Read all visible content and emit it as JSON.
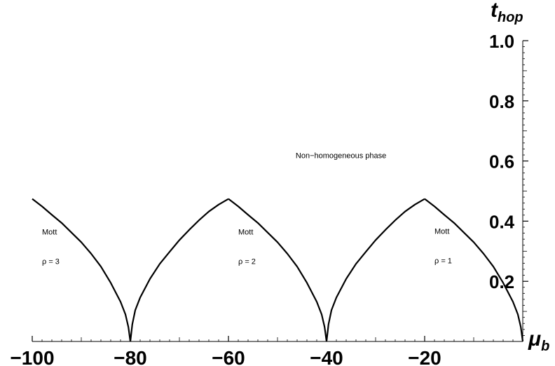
{
  "chart_data": {
    "type": "line",
    "xlabel_main": "μ",
    "xlabel_sub": "b",
    "ylabel_main": "t",
    "ylabel_sub": "hop",
    "xlim": [
      -100,
      0
    ],
    "ylim": [
      0,
      1.0
    ],
    "x_ticks": [
      -100,
      -80,
      -60,
      -40,
      -20
    ],
    "x_tick_labels": [
      "−100",
      "−80",
      "−60",
      "−40",
      "−20"
    ],
    "y_ticks": [
      0.2,
      0.4,
      0.6,
      0.8,
      1.0
    ],
    "y_tick_labels": [
      "0.2",
      "0.4",
      "0.6",
      "0.8",
      "1.0"
    ],
    "line_color": "#000000",
    "series": [
      {
        "points": [
          [
            -100,
            0.474
          ],
          [
            -98,
            0.449
          ],
          [
            -96,
            0.421
          ],
          [
            -94,
            0.394
          ],
          [
            -92,
            0.362
          ],
          [
            -90,
            0.33
          ],
          [
            -88,
            0.292
          ],
          [
            -86,
            0.249
          ],
          [
            -84,
            0.195
          ],
          [
            -82,
            0.132
          ],
          [
            -81,
            0.09
          ],
          [
            -80.4,
            0.048
          ],
          [
            -80,
            0.0
          ]
        ]
      },
      {
        "points": [
          [
            -80,
            0.0
          ],
          [
            -79.6,
            0.057
          ],
          [
            -79,
            0.104
          ],
          [
            -78,
            0.146
          ],
          [
            -76,
            0.208
          ],
          [
            -74,
            0.258
          ],
          [
            -72,
            0.298
          ],
          [
            -70,
            0.337
          ],
          [
            -68,
            0.371
          ],
          [
            -66,
            0.403
          ],
          [
            -64,
            0.432
          ],
          [
            -62,
            0.455
          ],
          [
            -60,
            0.474
          ]
        ]
      },
      {
        "points": [
          [
            -60,
            0.474
          ],
          [
            -58,
            0.449
          ],
          [
            -56,
            0.421
          ],
          [
            -54,
            0.394
          ],
          [
            -52,
            0.362
          ],
          [
            -50,
            0.33
          ],
          [
            -48,
            0.292
          ],
          [
            -46,
            0.249
          ],
          [
            -44,
            0.195
          ],
          [
            -42,
            0.132
          ],
          [
            -41,
            0.09
          ],
          [
            -40.4,
            0.048
          ],
          [
            -40,
            0.0
          ]
        ]
      },
      {
        "points": [
          [
            -40,
            0.0
          ],
          [
            -39.6,
            0.057
          ],
          [
            -39,
            0.104
          ],
          [
            -38,
            0.146
          ],
          [
            -36,
            0.208
          ],
          [
            -34,
            0.258
          ],
          [
            -32,
            0.298
          ],
          [
            -30,
            0.337
          ],
          [
            -28,
            0.371
          ],
          [
            -26,
            0.403
          ],
          [
            -24,
            0.432
          ],
          [
            -22,
            0.455
          ],
          [
            -20,
            0.474
          ]
        ]
      },
      {
        "points": [
          [
            -20,
            0.474
          ],
          [
            -18,
            0.449
          ],
          [
            -16,
            0.421
          ],
          [
            -14,
            0.394
          ],
          [
            -12,
            0.362
          ],
          [
            -10,
            0.33
          ],
          [
            -8,
            0.292
          ],
          [
            -6,
            0.249
          ],
          [
            -4,
            0.195
          ],
          [
            -2,
            0.132
          ],
          [
            -1,
            0.09
          ],
          [
            -0.4,
            0.048
          ],
          [
            0,
            0.0
          ]
        ]
      }
    ],
    "annotations": [
      {
        "text": "Non−homogeneous phase",
        "x": -46.3,
        "y": 0.61
      },
      {
        "text": "Mott",
        "x": -98,
        "y": 0.355
      },
      {
        "text": "ρ = 3",
        "x": -98,
        "y": 0.258
      },
      {
        "text": "Mott",
        "x": -58,
        "y": 0.355
      },
      {
        "text": "ρ = 2",
        "x": -58,
        "y": 0.258
      },
      {
        "text": "Mott",
        "x": -18,
        "y": 0.358
      },
      {
        "text": "ρ = 1",
        "x": -18,
        "y": 0.26
      }
    ]
  }
}
